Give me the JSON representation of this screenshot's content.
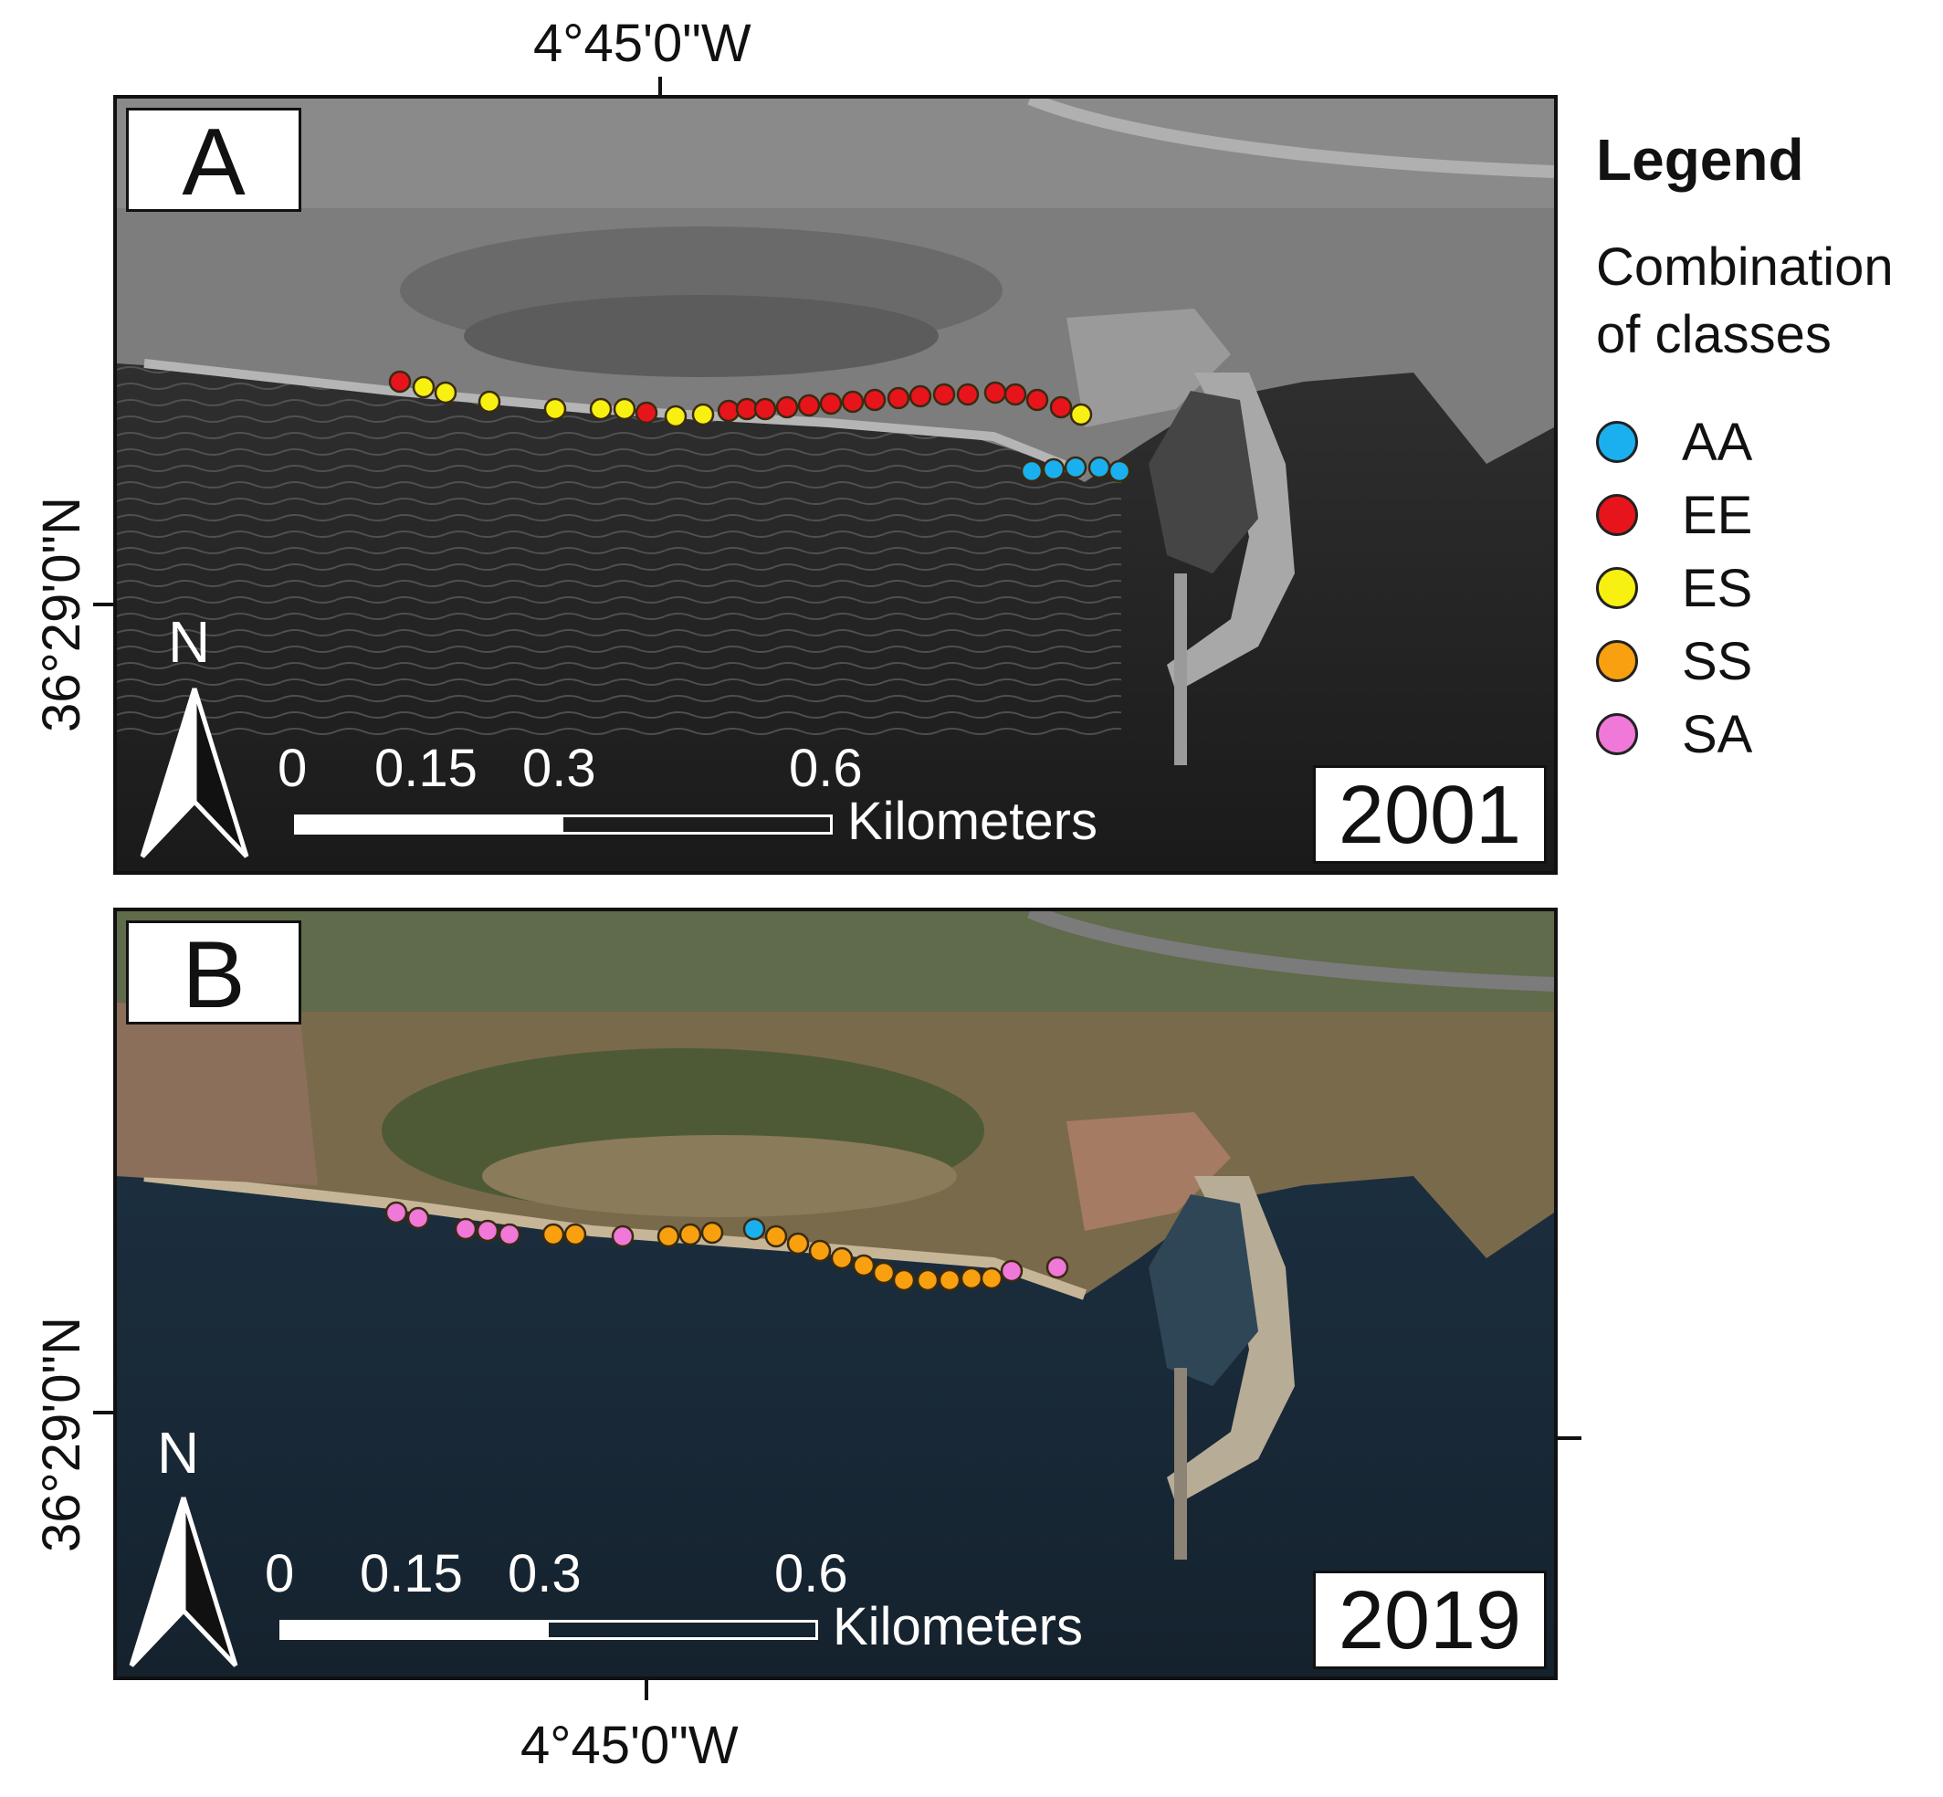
{
  "coords": {
    "top_lon": "4°45'0\"W",
    "bottom_lon": "4°45'0\"W",
    "lat_a": "36°29'0\"N",
    "lat_b": "36°29'0\"N"
  },
  "colors": {
    "AA": "#1ab0f0",
    "EE": "#e8141c",
    "ES": "#f8f010",
    "SS": "#f8a010",
    "SA": "#f078d8"
  },
  "legend": {
    "title": "Legend",
    "subtitle": "Combination of classes",
    "items": [
      {
        "code": "AA",
        "label": "AA"
      },
      {
        "code": "EE",
        "label": "EE"
      },
      {
        "code": "ES",
        "label": "ES"
      },
      {
        "code": "SS",
        "label": "SS"
      },
      {
        "code": "SA",
        "label": "SA"
      }
    ]
  },
  "panels": [
    {
      "letter": "A",
      "year": "2001",
      "style": "grayscale aerial",
      "scale": {
        "labels": [
          "0",
          "0.15",
          "0.3",
          "0.6"
        ],
        "unit": "Kilometers"
      },
      "north": "N",
      "points": [
        "EE",
        "ES",
        "ES",
        "ES",
        "ES",
        "ES",
        "ES",
        "EE",
        "ES",
        "ES",
        "EE",
        "EE",
        "EE",
        "EE",
        "EE",
        "EE",
        "EE",
        "EE",
        "EE",
        "EE",
        "EE",
        "EE",
        "EE",
        "EE",
        "EE",
        "EE",
        "ES",
        "AA",
        "AA",
        "AA",
        "AA",
        "AA"
      ]
    },
    {
      "letter": "B",
      "year": "2019",
      "style": "color aerial",
      "scale": {
        "labels": [
          "0",
          "0.15",
          "0.3",
          "0.6"
        ],
        "unit": "Kilometers"
      },
      "north": "N",
      "points": [
        "SA",
        "SA",
        "SA",
        "SA",
        "SA",
        "SS",
        "SS",
        "SA",
        "SS",
        "SS",
        "SS",
        "AA",
        "SS",
        "SS",
        "SS",
        "SS",
        "SS",
        "SS",
        "SS",
        "SS",
        "SS",
        "SS",
        "SS",
        "SA",
        "SA"
      ]
    }
  ]
}
